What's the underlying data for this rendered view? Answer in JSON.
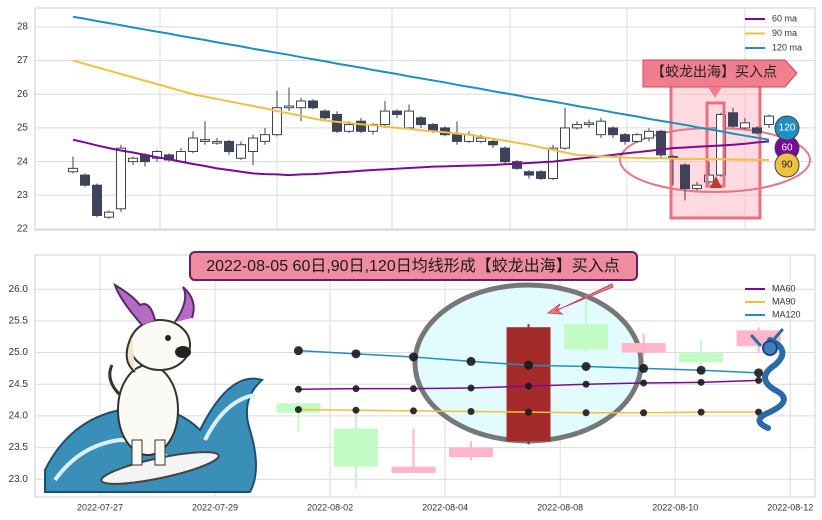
{
  "chart_data": [
    {
      "type": "candlestick",
      "open": [
        23.7,
        23.6,
        23.3,
        22.35,
        22.6,
        24.0,
        24.2,
        24.1,
        24.2,
        24.0,
        24.3,
        24.6,
        24.55,
        24.6,
        24.1,
        24.3,
        24.6,
        24.8,
        25.6,
        25.6,
        25.8,
        25.5,
        25.4,
        24.9,
        25.2,
        24.9,
        25.1,
        25.5,
        25.0,
        25.3,
        25.1,
        25.0,
        24.8,
        24.6,
        24.6,
        24.6,
        24.4,
        24.0,
        23.7,
        23.7,
        23.5,
        24.4,
        25.0,
        25.1,
        24.8,
        25.0,
        24.8,
        24.6,
        24.7,
        24.9,
        24.15,
        23.9,
        23.2,
        23.4,
        23.6,
        25.45,
        25.0,
        25.0,
        25.1
      ],
      "high": [
        24.15,
        23.65,
        23.35,
        22.55,
        24.5,
        24.15,
        24.25,
        24.35,
        24.25,
        24.4,
        24.9,
        25.2,
        24.7,
        24.65,
        24.6,
        24.8,
        25.0,
        26.1,
        26.2,
        25.9,
        25.85,
        25.55,
        25.5,
        25.2,
        25.3,
        25.15,
        25.8,
        25.55,
        25.7,
        25.35,
        25.15,
        25.05,
        25.2,
        24.9,
        24.8,
        24.65,
        24.45,
        24.05,
        23.75,
        23.75,
        24.5,
        25.6,
        25.2,
        25.25,
        25.3,
        25.05,
        24.85,
        24.85,
        25.0,
        24.95,
        24.2,
        23.95,
        23.4,
        24.0,
        25.45,
        25.6,
        25.3,
        25.05,
        25.4
      ],
      "low": [
        23.65,
        23.25,
        22.35,
        22.3,
        22.5,
        23.9,
        23.85,
        24.0,
        24.0,
        23.95,
        24.25,
        24.5,
        24.5,
        24.2,
        24.05,
        23.9,
        24.5,
        24.75,
        25.5,
        25.2,
        25.55,
        25.2,
        24.85,
        24.85,
        24.85,
        24.8,
        25.0,
        25.3,
        24.95,
        25.0,
        24.85,
        24.75,
        24.5,
        24.55,
        24.55,
        24.4,
        23.9,
        23.75,
        23.5,
        23.45,
        23.45,
        24.35,
        24.95,
        25.0,
        24.7,
        24.7,
        24.5,
        24.55,
        24.6,
        24.1,
        23.3,
        22.85,
        23.15,
        23.35,
        23.55,
        25.0,
        24.95,
        24.8,
        25.0
      ],
      "close": [
        23.8,
        23.3,
        22.4,
        22.5,
        24.4,
        24.1,
        24.0,
        24.3,
        24.05,
        24.3,
        24.7,
        24.65,
        24.6,
        24.3,
        24.5,
        24.7,
        24.8,
        25.6,
        25.65,
        25.8,
        25.6,
        25.3,
        24.9,
        25.1,
        24.9,
        25.1,
        25.5,
        25.4,
        25.5,
        25.1,
        24.9,
        24.8,
        24.6,
        24.8,
        24.7,
        24.5,
        24.0,
        23.8,
        23.6,
        23.5,
        24.4,
        25.0,
        25.1,
        25.15,
        25.2,
        24.8,
        24.6,
        24.8,
        24.9,
        24.2,
        24.1,
        23.2,
        23.3,
        23.6,
        25.4,
        25.05,
        25.15,
        24.85,
        25.35
      ],
      "up_color": "#ffffff",
      "down_color": "#3d4358",
      "ylim": [
        21.97,
        28.56
      ],
      "yticks": [
        22,
        23,
        24,
        25,
        26,
        27,
        28
      ],
      "grid": true,
      "legend": "upper right",
      "series": [
        {
          "name": "60 ma",
          "color": "#7b0a9c",
          "end_label": "60",
          "values": [
            24.65,
            24.57,
            24.48,
            24.4,
            24.33,
            24.27,
            24.2,
            24.13,
            24.07,
            24.0,
            23.93,
            23.87,
            23.8,
            23.75,
            23.7,
            23.65,
            23.63,
            23.62,
            23.6,
            23.62,
            23.63,
            23.65,
            23.68,
            23.7,
            23.73,
            23.75,
            23.77,
            23.79,
            23.81,
            23.83,
            23.85,
            23.86,
            23.87,
            23.88,
            23.89,
            23.9,
            23.92,
            23.94,
            23.96,
            23.98,
            24.0,
            24.04,
            24.08,
            24.12,
            24.16,
            24.2,
            24.24,
            24.28,
            24.32,
            24.36,
            24.4,
            24.42,
            24.44,
            24.46,
            24.48,
            24.5,
            24.53,
            24.57,
            24.6
          ]
        },
        {
          "name": "90 ma",
          "color": "#f0c040",
          "end_label": "90",
          "values": [
            27.0,
            26.9,
            26.8,
            26.7,
            26.6,
            26.5,
            26.4,
            26.3,
            26.2,
            26.1,
            26.0,
            25.93,
            25.86,
            25.79,
            25.72,
            25.65,
            25.58,
            25.5,
            25.43,
            25.36,
            25.28,
            25.22,
            25.18,
            25.15,
            25.11,
            25.08,
            25.04,
            25.0,
            24.97,
            24.93,
            24.9,
            24.87,
            24.83,
            24.8,
            24.74,
            24.68,
            24.62,
            24.56,
            24.5,
            24.42,
            24.35,
            24.27,
            24.2,
            24.18,
            24.16,
            24.14,
            24.12,
            24.11,
            24.1,
            24.1,
            24.09,
            24.08,
            24.08,
            24.07,
            24.07,
            24.06,
            24.06,
            24.05,
            24.05
          ]
        },
        {
          "name": "120 ma",
          "color": "#1f8fc2",
          "end_label": "120",
          "values": [
            28.3,
            28.24,
            28.17,
            28.11,
            28.05,
            27.98,
            27.92,
            27.86,
            27.8,
            27.73,
            27.67,
            27.61,
            27.54,
            27.48,
            27.42,
            27.35,
            27.29,
            27.23,
            27.17,
            27.1,
            27.04,
            26.98,
            26.91,
            26.85,
            26.79,
            26.72,
            26.66,
            26.6,
            26.53,
            26.47,
            26.41,
            26.35,
            26.28,
            26.22,
            26.16,
            26.09,
            26.03,
            25.97,
            25.9,
            25.84,
            25.78,
            25.72,
            25.65,
            25.59,
            25.53,
            25.46,
            25.4,
            25.34,
            25.27,
            25.21,
            25.15,
            25.09,
            25.02,
            24.96,
            24.9,
            24.83,
            24.77,
            24.71,
            24.65
          ]
        }
      ],
      "annotation": "【蛟龙出海】买入点"
    },
    {
      "type": "candlestick",
      "title": "2022-08-05 60日,90日,120日均线形成【蛟龙出海】买入点",
      "x": [
        3.45,
        4.45,
        5.45,
        6.45,
        7.45,
        8.45,
        9.45,
        10.45,
        11.45
      ],
      "open": [
        24.2,
        23.8,
        23.1,
        23.35,
        23.6,
        25.45,
        25.0,
        25.0,
        25.1
      ],
      "high": [
        24.2,
        24.1,
        23.8,
        23.6,
        25.45,
        25.9,
        25.3,
        25.2,
        25.4
      ],
      "low": [
        23.75,
        22.85,
        23.1,
        23.3,
        23.55,
        25.0,
        24.95,
        24.8,
        25.0
      ],
      "close": [
        24.05,
        23.2,
        23.2,
        23.5,
        25.4,
        25.05,
        25.15,
        24.85,
        25.35
      ],
      "colors": [
        "#c2fbc4",
        "#c2fbc4",
        "#ffb6c8",
        "#ffb6c8",
        "#a52a2a",
        "#c2fbc4",
        "#ffb6c8",
        "#c2fbc4",
        "#ffb6c8"
      ],
      "xlim": [
        -1.13,
        12.43
      ],
      "ylim": [
        22.72,
        26.54
      ],
      "xticks": [
        {
          "value": 0,
          "label": "2022-07-27"
        },
        {
          "value": 2,
          "label": "2022-07-29"
        },
        {
          "value": 4,
          "label": "2022-08-02"
        },
        {
          "value": 6,
          "label": "2022-08-04"
        },
        {
          "value": 8,
          "label": "2022-08-08"
        },
        {
          "value": 10,
          "label": "2022-08-10"
        },
        {
          "value": 12,
          "label": "2022-08-12"
        }
      ],
      "yticks": [
        {
          "value": 23,
          "label": "23.0"
        },
        23.5,
        {
          "value": 24,
          "label": "24.0"
        },
        24.5,
        {
          "value": 25,
          "label": "25.0"
        },
        25.5,
        {
          "value": 26,
          "label": "26.0"
        }
      ],
      "grid": true,
      "legend": "upper right",
      "series": [
        {
          "name": "MA60",
          "color": "#7b0a9c",
          "values": [
            24.42,
            24.43,
            24.43,
            24.44,
            24.47,
            24.5,
            24.52,
            24.53,
            24.56
          ]
        },
        {
          "name": "MA90",
          "color": "#f0c040",
          "values": [
            24.1,
            24.09,
            24.08,
            24.07,
            24.06,
            24.05,
            24.05,
            24.06,
            24.06
          ]
        },
        {
          "name": "MA120",
          "color": "#1f8fc2",
          "values": [
            25.03,
            24.98,
            24.93,
            24.86,
            24.8,
            24.78,
            24.75,
            24.72,
            24.68
          ]
        }
      ]
    }
  ]
}
